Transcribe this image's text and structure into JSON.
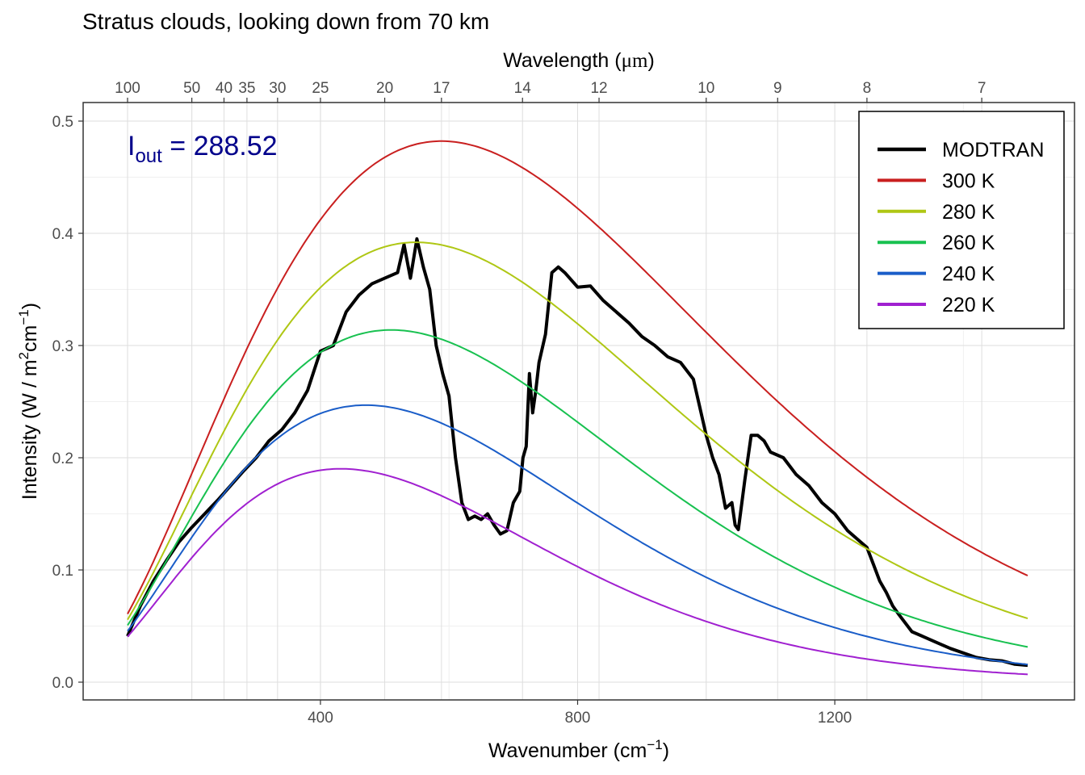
{
  "chart_data": {
    "type": "line",
    "title": "Stratus clouds, looking down from 70 km",
    "xlabel": "Wavenumber",
    "xlabel_unit": "cm",
    "xlabel_unit_sup": "−1",
    "ylabel_prefix": "Intensity (W / m",
    "ylabel_sup1": "2",
    "ylabel_mid": "cm",
    "ylabel_sup2": "−1",
    "ylabel_suffix": ")",
    "x2label_prefix": "Wavelength (",
    "x2label_unit": "μm",
    "x2label_suffix": ")",
    "xlim": [
      100,
      1500
    ],
    "ylim": [
      0,
      0.5
    ],
    "x_ticks": [
      400,
      800,
      1200
    ],
    "x_tick_labels": [
      "400",
      "800",
      "1200"
    ],
    "y_ticks": [
      0.0,
      0.1,
      0.2,
      0.3,
      0.4,
      0.5
    ],
    "y_tick_labels": [
      "0.0",
      "0.1",
      "0.2",
      "0.3",
      "0.4",
      "0.5"
    ],
    "x2_ticks": [
      100,
      50,
      40,
      35,
      30,
      25,
      20,
      17,
      14,
      12,
      10,
      9,
      8,
      7
    ],
    "x2_tick_labels": [
      "100",
      "50",
      "40",
      "35",
      "30",
      "25",
      "20",
      "17",
      "14",
      "12",
      "10",
      "9",
      "8",
      "7"
    ],
    "grid": true,
    "legend_position": "top-right",
    "annotation": {
      "symbol": "I",
      "subscript": "out",
      "equals": " = ",
      "value": "288.52",
      "color": "#00008B"
    },
    "series": [
      {
        "name": "MODTRAN",
        "color": "#000000",
        "kind": "spectrum",
        "x": [
          100,
          120,
          140,
          160,
          180,
          200,
          220,
          240,
          260,
          280,
          300,
          320,
          340,
          360,
          380,
          400,
          420,
          440,
          460,
          480,
          500,
          520,
          530,
          540,
          550,
          560,
          570,
          580,
          590,
          600,
          610,
          620,
          630,
          640,
          650,
          660,
          670,
          680,
          690,
          700,
          710,
          715,
          720,
          725,
          730,
          735,
          740,
          750,
          760,
          770,
          780,
          800,
          820,
          840,
          860,
          880,
          900,
          920,
          940,
          960,
          980,
          1000,
          1010,
          1020,
          1030,
          1040,
          1045,
          1050,
          1060,
          1070,
          1080,
          1090,
          1100,
          1120,
          1140,
          1160,
          1180,
          1200,
          1220,
          1240,
          1250,
          1260,
          1270,
          1280,
          1290,
          1300,
          1320,
          1340,
          1360,
          1380,
          1400,
          1420,
          1440,
          1460,
          1480,
          1500
        ],
        "y": [
          0.041,
          0.068,
          0.09,
          0.108,
          0.125,
          0.138,
          0.15,
          0.162,
          0.175,
          0.188,
          0.2,
          0.215,
          0.225,
          0.24,
          0.26,
          0.295,
          0.3,
          0.33,
          0.345,
          0.355,
          0.36,
          0.365,
          0.39,
          0.36,
          0.395,
          0.37,
          0.35,
          0.3,
          0.275,
          0.255,
          0.2,
          0.16,
          0.145,
          0.148,
          0.145,
          0.15,
          0.14,
          0.132,
          0.135,
          0.16,
          0.17,
          0.2,
          0.21,
          0.275,
          0.24,
          0.26,
          0.285,
          0.31,
          0.365,
          0.37,
          0.365,
          0.352,
          0.353,
          0.34,
          0.33,
          0.32,
          0.308,
          0.3,
          0.29,
          0.285,
          0.27,
          0.22,
          0.2,
          0.185,
          0.155,
          0.16,
          0.14,
          0.136,
          0.18,
          0.22,
          0.22,
          0.215,
          0.205,
          0.2,
          0.185,
          0.175,
          0.16,
          0.15,
          0.135,
          0.125,
          0.12,
          0.105,
          0.09,
          0.08,
          0.068,
          0.06,
          0.045,
          0.04,
          0.035,
          0.03,
          0.026,
          0.022,
          0.02,
          0.019,
          0.016,
          0.015
        ]
      },
      {
        "name": "300 K",
        "color": "#C91F1F",
        "temperature": 300
      },
      {
        "name": "280 K",
        "color": "#AFC714",
        "temperature": 280
      },
      {
        "name": "260 K",
        "color": "#18C150",
        "temperature": 260
      },
      {
        "name": "240 K",
        "color": "#1A5DC8",
        "temperature": 240
      },
      {
        "name": "220 K",
        "color": "#A020D0",
        "temperature": 220
      }
    ]
  }
}
